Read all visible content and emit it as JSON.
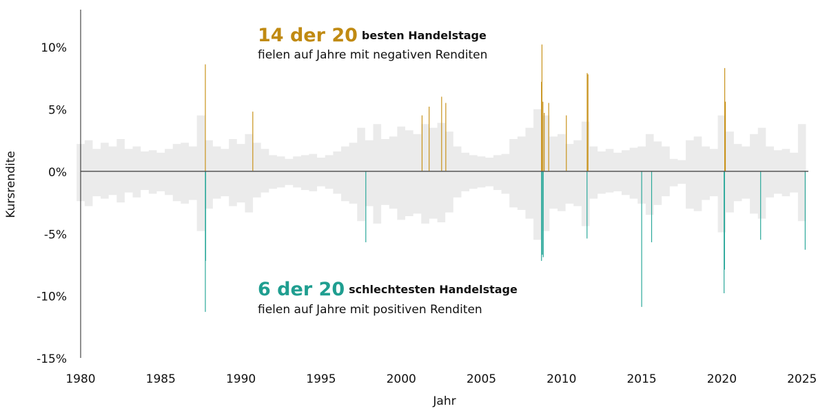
{
  "chart_data": {
    "type": "bar",
    "x_label": "Jahr",
    "y_label": "Kursrendite",
    "annotations": [
      {
        "highlight": "14 der 20",
        "text": "besten Handelstage",
        "note": "fielen auf Jahre mit negativen Renditen",
        "color": "#c08a12"
      },
      {
        "highlight": "6 der 20",
        "text": "schlechtesten Handelstage",
        "note": "fielen auf Jahre mit positiven Renditen",
        "color": "#1f9e90"
      }
    ],
    "xlim": [
      1980,
      2025.4
    ],
    "xticks": [
      1980,
      1985,
      1990,
      1995,
      2000,
      2005,
      2010,
      2015,
      2020,
      2025
    ],
    "ylim": [
      -15,
      13
    ],
    "yticks": [
      {
        "value": -15,
        "label": "-15%"
      },
      {
        "value": -10,
        "label": "-10%"
      },
      {
        "value": -5,
        "label": "-5%"
      },
      {
        "value": 0,
        "label": "0%"
      },
      {
        "value": 5,
        "label": "5%"
      },
      {
        "value": 10,
        "label": "10%"
      }
    ],
    "series": [
      {
        "type": "area",
        "color": "#ebebeb",
        "x": [
          1980,
          1980.5,
          1981,
          1981.5,
          1982,
          1982.5,
          1983,
          1983.5,
          1984,
          1984.5,
          1985,
          1985.5,
          1986,
          1986.5,
          1987,
          1987.5,
          1988,
          1988.5,
          1989,
          1989.5,
          1990,
          1990.5,
          1991,
          1991.5,
          1992,
          1992.5,
          1993,
          1993.5,
          1994,
          1994.5,
          1995,
          1995.5,
          1996,
          1996.5,
          1997,
          1997.5,
          1998,
          1998.5,
          1999,
          1999.5,
          2000,
          2000.5,
          2001,
          2001.5,
          2002,
          2002.5,
          2003,
          2003.5,
          2004,
          2004.5,
          2005,
          2005.5,
          2006,
          2006.5,
          2007,
          2007.5,
          2008,
          2008.5,
          2009,
          2009.5,
          2010,
          2010.5,
          2011,
          2011.5,
          2012,
          2012.5,
          2013,
          2013.5,
          2014,
          2014.5,
          2015,
          2015.5,
          2016,
          2016.5,
          2017,
          2017.5,
          2018,
          2018.5,
          2019,
          2019.5,
          2020,
          2020.5,
          2021,
          2021.5,
          2022,
          2022.5,
          2023,
          2023.5,
          2024,
          2024.5,
          2025
        ],
        "values": [
          2.2,
          2.5,
          1.8,
          2.3,
          2.0,
          2.6,
          1.8,
          2.0,
          1.6,
          1.7,
          1.5,
          1.8,
          2.2,
          2.3,
          2.0,
          4.5,
          2.5,
          2.0,
          1.8,
          2.6,
          2.2,
          3.0,
          2.3,
          1.8,
          1.3,
          1.2,
          1.0,
          1.2,
          1.3,
          1.4,
          1.1,
          1.3,
          1.6,
          2.0,
          2.3,
          3.5,
          2.5,
          3.8,
          2.6,
          2.8,
          3.6,
          3.3,
          3.0,
          3.8,
          3.5,
          3.9,
          3.2,
          2.0,
          1.5,
          1.3,
          1.2,
          1.1,
          1.3,
          1.4,
          2.6,
          2.8,
          3.5,
          5.0,
          4.5,
          2.8,
          3.0,
          2.2,
          2.5,
          4.0,
          2.0,
          1.6,
          1.8,
          1.5,
          1.7,
          1.9,
          2.0,
          3.0,
          2.4,
          2.0,
          1.0,
          0.9,
          2.5,
          2.8,
          2.0,
          1.8,
          4.5,
          3.2,
          2.2,
          2.0,
          3.0,
          3.5,
          2.0,
          1.7,
          1.8,
          1.5,
          3.8
        ]
      },
      {
        "type": "area",
        "color": "#ebebeb",
        "x": [
          1980,
          1980.5,
          1981,
          1981.5,
          1982,
          1982.5,
          1983,
          1983.5,
          1984,
          1984.5,
          1985,
          1985.5,
          1986,
          1986.5,
          1987,
          1987.5,
          1988,
          1988.5,
          1989,
          1989.5,
          1990,
          1990.5,
          1991,
          1991.5,
          1992,
          1992.5,
          1993,
          1993.5,
          1994,
          1994.5,
          1995,
          1995.5,
          1996,
          1996.5,
          1997,
          1997.5,
          1998,
          1998.5,
          1999,
          1999.5,
          2000,
          2000.5,
          2001,
          2001.5,
          2002,
          2002.5,
          2003,
          2003.5,
          2004,
          2004.5,
          2005,
          2005.5,
          2006,
          2006.5,
          2007,
          2007.5,
          2008,
          2008.5,
          2009,
          2009.5,
          2010,
          2010.5,
          2011,
          2011.5,
          2012,
          2012.5,
          2013,
          2013.5,
          2014,
          2014.5,
          2015,
          2015.5,
          2016,
          2016.5,
          2017,
          2017.5,
          2018,
          2018.5,
          2019,
          2019.5,
          2020,
          2020.5,
          2021,
          2021.5,
          2022,
          2022.5,
          2023,
          2023.5,
          2024,
          2024.5,
          2025
        ],
        "values": [
          -2.4,
          -2.8,
          -2.0,
          -2.2,
          -1.9,
          -2.5,
          -1.7,
          -2.1,
          -1.5,
          -1.8,
          -1.6,
          -1.9,
          -2.4,
          -2.6,
          -2.3,
          -4.8,
          -3.0,
          -2.2,
          -2.0,
          -2.8,
          -2.5,
          -3.3,
          -2.1,
          -1.7,
          -1.4,
          -1.3,
          -1.1,
          -1.3,
          -1.5,
          -1.6,
          -1.2,
          -1.4,
          -1.8,
          -2.4,
          -2.6,
          -4.0,
          -2.8,
          -4.2,
          -2.7,
          -3.0,
          -3.9,
          -3.6,
          -3.4,
          -4.2,
          -3.8,
          -4.1,
          -3.3,
          -2.1,
          -1.6,
          -1.4,
          -1.3,
          -1.2,
          -1.5,
          -1.8,
          -2.9,
          -3.1,
          -3.8,
          -5.5,
          -4.8,
          -3.0,
          -3.2,
          -2.6,
          -2.8,
          -4.4,
          -2.2,
          -1.8,
          -1.7,
          -1.6,
          -1.9,
          -2.2,
          -2.6,
          -3.5,
          -2.7,
          -2.0,
          -1.2,
          -1.0,
          -3.0,
          -3.2,
          -2.3,
          -2.0,
          -4.9,
          -3.3,
          -2.4,
          -2.2,
          -3.4,
          -3.8,
          -2.1,
          -1.8,
          -2.0,
          -1.7,
          -4.0
        ]
      },
      {
        "type": "bar",
        "color": "#c8921a",
        "x": [
          1987.78,
          1990.74,
          2001.3,
          2001.74,
          2002.52,
          2002.78,
          2008.75,
          2008.78,
          2008.84,
          2008.92,
          2009.2,
          2010.3,
          2011.6,
          2011.65,
          2020.18,
          2020.22
        ],
        "values": [
          8.6,
          4.8,
          4.5,
          5.2,
          6.0,
          5.5,
          7.2,
          10.2,
          5.6,
          4.7,
          5.5,
          4.5,
          7.9,
          7.8,
          8.3,
          5.6
        ]
      },
      {
        "type": "bar",
        "color": "#2aa89a",
        "x": [
          1987.78,
          1987.8,
          1997.79,
          2008.75,
          2008.8,
          2008.86,
          2011.59,
          2015.0,
          2015.62,
          2020.14,
          2020.17,
          2022.42,
          2025.2
        ],
        "values": [
          -11.3,
          -7.2,
          -5.7,
          -7.2,
          -6.7,
          -6.9,
          -5.4,
          -10.9,
          -5.7,
          -9.8,
          -7.9,
          -5.5,
          -6.3
        ]
      }
    ]
  }
}
